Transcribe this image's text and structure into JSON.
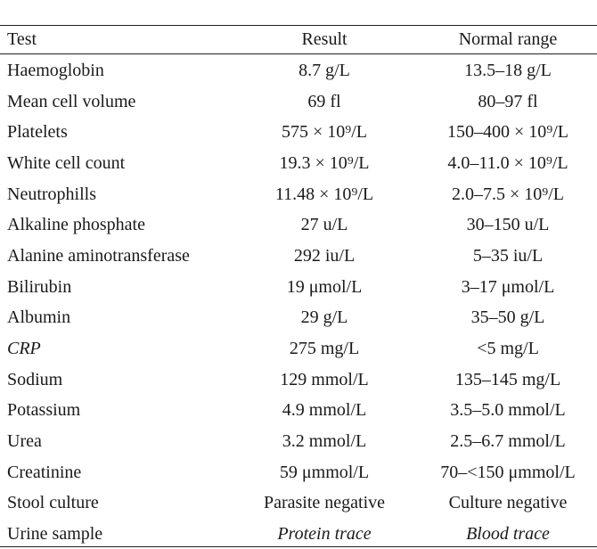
{
  "table": {
    "header": [
      "Test",
      "Result",
      "Normal range"
    ],
    "rows": [
      [
        "Haemoglobin",
        "8.7 g/L",
        "13.5–18 g/L"
      ],
      [
        "Mean cell volume",
        "69 fl",
        "80–97 fl"
      ],
      [
        "Platelets",
        "575 × 10⁹/L",
        "150–400 × 10⁹/L"
      ],
      [
        "White cell count",
        "19.3 × 10⁹/L",
        "4.0–11.0 × 10⁹/L"
      ],
      [
        "Neutrophills",
        "11.48 × 10⁹/L",
        "2.0–7.5 × 10⁹/L"
      ],
      [
        "Alkaline phosphate",
        "27 u/L",
        "30–150 u/L"
      ],
      [
        "Alanine aminotransferase",
        "292 iu/L",
        "5–35 iu/L"
      ],
      [
        "Bilirubin",
        "19 μmol/L",
        "3–17 μmol/L"
      ],
      [
        "Albumin",
        "29 g/L",
        "35–50 g/L"
      ],
      [
        "CRP",
        "275 mg/L",
        "<5 mg/L"
      ],
      [
        "Sodium",
        "129 mmol/L",
        "135–145 mg/L"
      ],
      [
        "Potassium",
        "4.9 mmol/L",
        "3.5–5.0 mmol/L"
      ],
      [
        "Urea",
        "3.2 mmol/L",
        "2.5–6.7 mmol/L"
      ],
      [
        "Creatinine",
        "59 μmmol/L",
        "70–<150 μmmol/L"
      ],
      [
        "Stool culture",
        "Parasite negative",
        "Culture negative"
      ],
      [
        "Urine sample",
        "Protein trace",
        "Blood trace"
      ]
    ]
  }
}
